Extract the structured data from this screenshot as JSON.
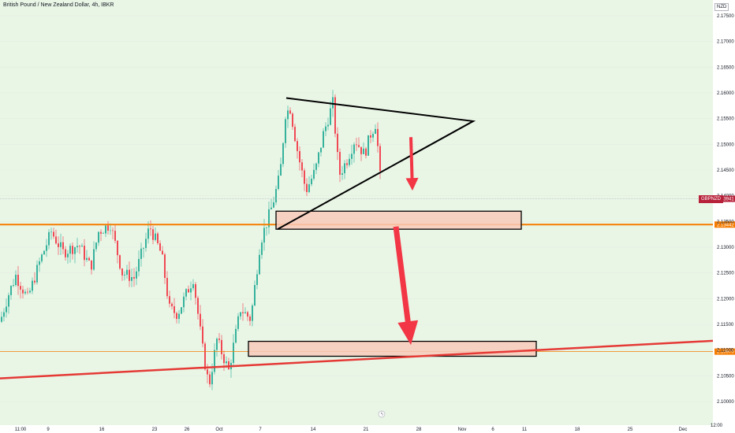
{
  "chart_title": "British Pound / New Zealand Dollar, 4h, IBKR",
  "currency_label": "NZD",
  "timeframe_label": "12:00",
  "colors": {
    "up": "#22ab94",
    "down": "#f23645",
    "background_zone": "#e8f5e4",
    "orange": "#f57c00",
    "red_line": "#e53935",
    "arrow": "#f23645",
    "zone_fill": "#f8c9b8"
  },
  "chart_data": {
    "type": "candlestick",
    "title": "British Pound / New Zealand Dollar, 4h, IBKR",
    "ylim": [
      2.097,
      2.1785
    ],
    "y_ticks": [
      "2.17500",
      "2.17000",
      "2.16500",
      "2.16000",
      "2.15500",
      "2.15000",
      "2.14500",
      "2.14000",
      "2.13500",
      "2.13000",
      "2.12500",
      "2.12000",
      "2.11500",
      "2.11000",
      "2.10500",
      "2.10000"
    ],
    "x_ticks": [
      "11:00",
      "9",
      "16",
      "23",
      "26",
      "Oct",
      "7",
      "14",
      "21",
      "28",
      "Nov",
      "6",
      "11",
      "18",
      "25",
      "Dec"
    ],
    "current_price_label": "2.13941",
    "symbol_label": "GBPNZD",
    "horizontal_levels": [
      {
        "price": 2.1344,
        "label": "2.13442"
      },
      {
        "price": 2.1097,
        "label": "2.10970"
      }
    ],
    "zones": [
      {
        "from": 2.1335,
        "to": 2.137
      },
      {
        "from": 2.1088,
        "to": 2.1117
      }
    ],
    "trendline_support": {
      "start": 2.1045,
      "end": 2.1118
    },
    "triangle_tops": [
      2.159,
      2.1545
    ],
    "triangle_bottom": 2.1335
  }
}
